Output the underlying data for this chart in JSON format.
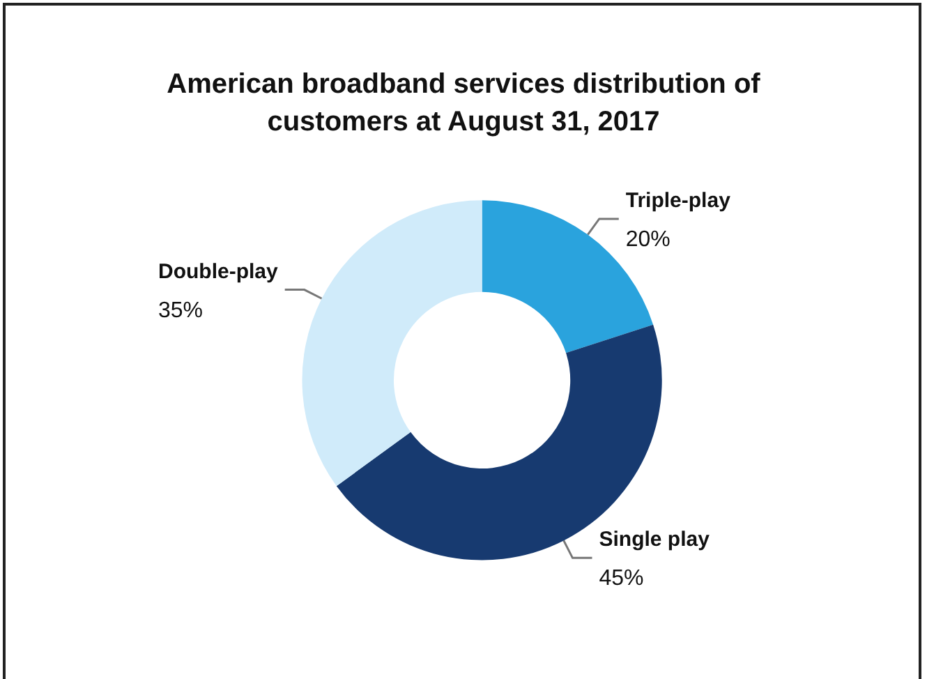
{
  "chart_data": {
    "type": "donut",
    "title": "American broadband services distribution of\ncustomers at August 31, 2017",
    "categories": [
      "Triple-play",
      "Single play",
      "Double-play"
    ],
    "values": [
      20,
      45,
      35
    ],
    "value_labels": [
      "20%",
      "45%",
      "35%"
    ],
    "colors": [
      "#2aa3dd",
      "#173a70",
      "#d0ebfa"
    ],
    "legend": false
  }
}
